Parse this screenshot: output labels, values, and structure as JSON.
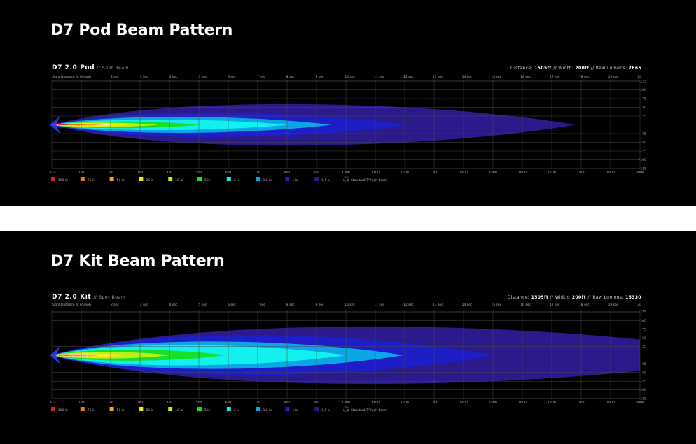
{
  "panels": [
    {
      "heading": "D7 Pod Beam Pattern",
      "chart_data": {
        "type": "area",
        "product": "D7 2.0 Pod",
        "beam": "// Spot Beam",
        "specs": {
          "distance_label": "Distance:",
          "distance": "1505ft",
          "width_label": "Width:",
          "width": "200ft",
          "lumens_label": "Raw Lumens:",
          "lumens": "7665",
          "separator": "//"
        },
        "sight_label": "Sight Distance at 65mph",
        "seconds": [
          "2 sec",
          "3 sec",
          "4 sec",
          "5 sec",
          "6 sec",
          "7 sec",
          "8 sec",
          "9 sec",
          "10 sec",
          "11 sec",
          "12 sec",
          "13 sec",
          "14 sec",
          "15 sec",
          "16 sec",
          "17 sec",
          "18 sec",
          "19 sec",
          "20"
        ],
        "x_label": "FEET",
        "x_ticks": [
          "100",
          "200",
          "300",
          "400",
          "500",
          "600",
          "700",
          "800",
          "900",
          "1000",
          "1100",
          "1200",
          "1300",
          "1400",
          "1500",
          "1600",
          "1700",
          "1800",
          "1900",
          "2000"
        ],
        "xlim": [
          0,
          2000
        ],
        "y_ticks": [
          "125",
          "100",
          "75",
          "50",
          "25",
          "-25",
          "-50",
          "-75",
          "-100",
          "-125"
        ],
        "ylim": [
          -125,
          125
        ],
        "series": [
          {
            "name": "0.5 lx",
            "color": "#2a1a8c",
            "reach": 1780,
            "half_width": 75
          },
          {
            "name": "1 lx",
            "color": "#1e1ec8",
            "reach": 1205,
            "half_width": 44
          },
          {
            "name": "1.5 lx",
            "color": "#0aa6e6",
            "reach": 950,
            "half_width": 29
          },
          {
            "name": "2 lx",
            "color": "#12f0f0",
            "reach": 800,
            "half_width": 19
          },
          {
            "name": "5 lx",
            "color": "#18e02a",
            "reach": 505,
            "half_width": 12
          },
          {
            "name": "10 lx",
            "color": "#b8f018",
            "reach": 360,
            "half_width": 8
          },
          {
            "name": "25 lx",
            "color": "#f0e618",
            "reach": 260,
            "half_width": 6
          },
          {
            "name": "50 lx",
            "color": "#f0a818",
            "reach": 175,
            "half_width": 4
          },
          {
            "name": "75 lx",
            "color": "#f07818",
            "reach": 115,
            "half_width": 3
          },
          {
            "name": "100 lx",
            "color": "#e02010",
            "reach": 60,
            "half_width": 2
          }
        ],
        "standard": {
          "name": "Standard 7\" high beam",
          "reach": 195,
          "half_width": 3
        },
        "legend": [
          {
            "name": "100 lx",
            "color": "#e02010"
          },
          {
            "name": "75 lx",
            "color": "#f07818"
          },
          {
            "name": "50 lx",
            "color": "#f0a818"
          },
          {
            "name": "25 lx",
            "color": "#f0e618"
          },
          {
            "name": "10 lx",
            "color": "#b8f018"
          },
          {
            "name": "5 lx",
            "color": "#18e02a"
          },
          {
            "name": "2 lx",
            "color": "#12f0f0"
          },
          {
            "name": "1.5 lx",
            "color": "#0aa6e6"
          },
          {
            "name": "1 lx",
            "color": "#1e1ec8"
          },
          {
            "name": "0.5 lx",
            "color": "#2a1a8c"
          },
          {
            "name": "Standard 7\" high beam",
            "color": "outline"
          }
        ]
      }
    },
    {
      "heading": "D7 Kit Beam Pattern",
      "chart_data": {
        "type": "area",
        "product": "D7 2.0 Kit",
        "beam": "// Spot Beam",
        "specs": {
          "distance_label": "Distance:",
          "distance": "1505ft",
          "width_label": "Width:",
          "width": "200ft",
          "lumens_label": "Raw Lumens:",
          "lumens": "15330",
          "separator": "//"
        },
        "sight_label": "Sight Distance at 65mph",
        "seconds": [
          "2 sec",
          "3 sec",
          "4 sec",
          "5 sec",
          "6 sec",
          "7 sec",
          "8 sec",
          "9 sec",
          "10 sec",
          "11 sec",
          "12 sec",
          "13 sec",
          "14 sec",
          "15 sec",
          "16 sec",
          "17 sec",
          "18 sec",
          "19 sec",
          "20"
        ],
        "x_label": "FEET",
        "x_ticks": [
          "100",
          "200",
          "300",
          "400",
          "500",
          "600",
          "700",
          "800",
          "900",
          "1000",
          "1100",
          "1200",
          "1300",
          "1400",
          "1500",
          "1600",
          "1700",
          "1800",
          "1900",
          "2000"
        ],
        "xlim": [
          0,
          2000
        ],
        "y_ticks": [
          "125",
          "100",
          "75",
          "50",
          "25",
          "-25",
          "-50",
          "-75",
          "-100",
          "-125"
        ],
        "ylim": [
          -125,
          125
        ],
        "series": [
          {
            "name": "0.5 lx",
            "color": "#2a1a8c",
            "reach": 2400,
            "half_width": 105
          },
          {
            "name": "1 lx",
            "color": "#1e1ec8",
            "reach": 1500,
            "half_width": 73
          },
          {
            "name": "1.5 lx",
            "color": "#0aa6e6",
            "reach": 1195,
            "half_width": 50
          },
          {
            "name": "2 lx",
            "color": "#12f0f0",
            "reach": 1000,
            "half_width": 37
          },
          {
            "name": "5 lx",
            "color": "#18e02a",
            "reach": 590,
            "half_width": 20
          },
          {
            "name": "10 lx",
            "color": "#b8f018",
            "reach": 400,
            "half_width": 12
          },
          {
            "name": "25 lx",
            "color": "#f0e618",
            "reach": 265,
            "half_width": 7
          },
          {
            "name": "50 lx",
            "color": "#f0a818",
            "reach": 170,
            "half_width": 5
          },
          {
            "name": "75 lx",
            "color": "#f07818",
            "reach": 110,
            "half_width": 3
          },
          {
            "name": "100 lx",
            "color": "#e02010",
            "reach": 65,
            "half_width": 2
          }
        ],
        "standard": {
          "name": "Standard 7\" high beam",
          "reach": 195,
          "half_width": 3
        },
        "legend": [
          {
            "name": "100 lx",
            "color": "#e02010"
          },
          {
            "name": "75 lx",
            "color": "#f07818"
          },
          {
            "name": "50 lx",
            "color": "#f0a818"
          },
          {
            "name": "25 lx",
            "color": "#f0e618"
          },
          {
            "name": "10 lx",
            "color": "#b8f018"
          },
          {
            "name": "5 lx",
            "color": "#18e02a"
          },
          {
            "name": "2 lx",
            "color": "#12f0f0"
          },
          {
            "name": "1.5 lx",
            "color": "#0aa6e6"
          },
          {
            "name": "1 lx",
            "color": "#1e1ec8"
          },
          {
            "name": "0.5 lx",
            "color": "#2a1a8c"
          },
          {
            "name": "Standard 7\" high beam",
            "color": "outline"
          }
        ]
      }
    }
  ]
}
